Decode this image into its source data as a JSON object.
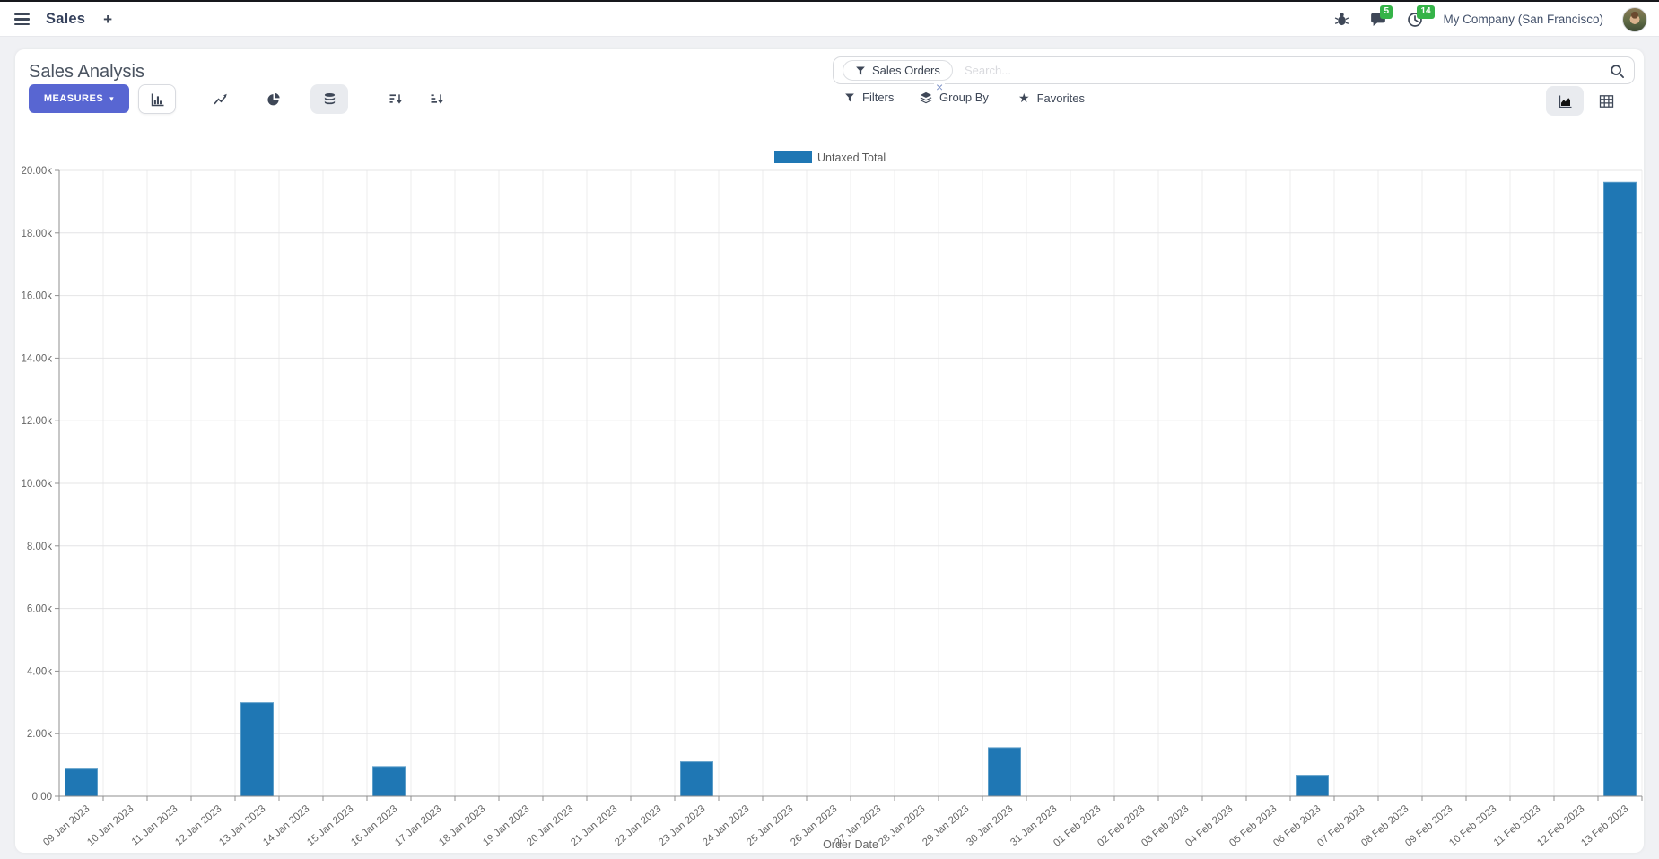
{
  "navbar": {
    "app_name": "Sales",
    "messages_badge": "5",
    "activities_badge": "14",
    "company": "My Company (San Francisco)"
  },
  "icons": {
    "plus": "+",
    "caret_down": "▾",
    "star": "★",
    "close": "×"
  },
  "control_panel": {
    "title": "Sales Analysis",
    "measures_label": "MEASURES",
    "search": {
      "facet": "Sales Orders",
      "placeholder": "Search..."
    },
    "filters_label": "Filters",
    "group_by_label": "Group By",
    "favorites_label": "Favorites"
  },
  "colors": {
    "bar": "#1f77b4",
    "accent": "#5866d2",
    "badge_green": "#35b348"
  },
  "chart_data": {
    "type": "bar",
    "title": "",
    "legend": [
      {
        "label": "Untaxed Total",
        "color": "#1f77b4"
      }
    ],
    "legend_position": "top",
    "grid": true,
    "xlabel": "Order Date",
    "ylabel": "",
    "ylim": [
      0,
      20000
    ],
    "ytick_step": 2000,
    "ytick_labels": [
      "0.00",
      "2.00k",
      "4.00k",
      "6.00k",
      "8.00k",
      "10.00k",
      "12.00k",
      "14.00k",
      "16.00k",
      "18.00k",
      "20.00k"
    ],
    "categories": [
      "09 Jan 2023",
      "10 Jan 2023",
      "11 Jan 2023",
      "12 Jan 2023",
      "13 Jan 2023",
      "14 Jan 2023",
      "15 Jan 2023",
      "16 Jan 2023",
      "17 Jan 2023",
      "18 Jan 2023",
      "19 Jan 2023",
      "20 Jan 2023",
      "21 Jan 2023",
      "22 Jan 2023",
      "23 Jan 2023",
      "24 Jan 2023",
      "25 Jan 2023",
      "26 Jan 2023",
      "27 Jan 2023",
      "28 Jan 2023",
      "29 Jan 2023",
      "30 Jan 2023",
      "31 Jan 2023",
      "01 Feb 2023",
      "02 Feb 2023",
      "03 Feb 2023",
      "04 Feb 2023",
      "05 Feb 2023",
      "06 Feb 2023",
      "07 Feb 2023",
      "08 Feb 2023",
      "09 Feb 2023",
      "10 Feb 2023",
      "11 Feb 2023",
      "12 Feb 2023",
      "13 Feb 2023"
    ],
    "values": [
      870,
      0,
      0,
      0,
      2990,
      0,
      0,
      950,
      0,
      0,
      0,
      0,
      0,
      0,
      1100,
      0,
      0,
      0,
      0,
      0,
      0,
      1550,
      0,
      0,
      0,
      0,
      0,
      0,
      670,
      0,
      0,
      0,
      0,
      0,
      0,
      19620
    ]
  }
}
